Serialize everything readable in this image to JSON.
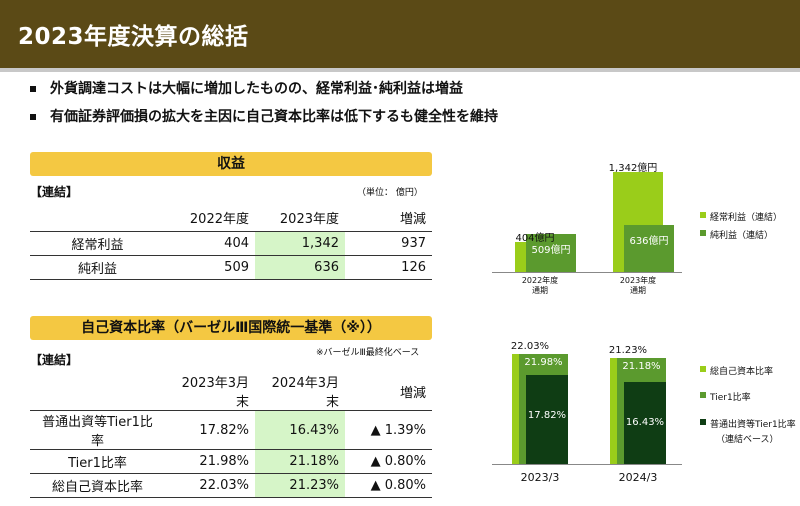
{
  "title": "2023年度決算の総括",
  "bullets": [
    "外貨調達コストは大幅に増加したものの、経常利益･純利益は増益",
    "有価証券評価損の拡大を主因に自己資本比率は低下するも健全性を維持"
  ],
  "income": {
    "banner": "収益",
    "scope": "【連結】",
    "unit": "（単位： 億円）",
    "headers": [
      "",
      "2022年度",
      "2023年度",
      "増減"
    ],
    "rows": [
      {
        "label": "経常利益",
        "v2022": "404",
        "v2023": "1,342",
        "diff": "937"
      },
      {
        "label": "純利益",
        "v2022": "509",
        "v2023": "636",
        "diff": "126"
      }
    ]
  },
  "capital": {
    "banner": "自己資本比率（バーゼルⅢ国際統一基準（※））",
    "note": "※バーゼルⅢ最終化ベース",
    "scope": "【連結】",
    "headers": [
      "",
      "2023年3月末",
      "2024年3月末",
      "増減"
    ],
    "rows": [
      {
        "label": "普通出資等Tier1比率",
        "v2023": "17.82%",
        "v2024": "16.43%",
        "diff": "▲ 1.39%"
      },
      {
        "label": "Tier1比率",
        "v2023": "21.98%",
        "v2024": "21.18%",
        "diff": "▲ 0.80%"
      },
      {
        "label": "総自己資本比率",
        "v2023": "22.03%",
        "v2024": "21.23%",
        "diff": "▲ 0.80%"
      }
    ]
  },
  "chart_data": [
    {
      "type": "bar",
      "categories": [
        "2022年度\n通期",
        "2023年度\n通期"
      ],
      "series": [
        {
          "name": "経常利益（連結）",
          "values": [
            404,
            1342
          ],
          "labels": [
            "404億円",
            "1,342億円"
          ],
          "color": "#9acd1a"
        },
        {
          "name": "純利益（連結）",
          "values": [
            509,
            636
          ],
          "labels": [
            "509億円",
            "636億円"
          ],
          "color": "#5b9a2e"
        }
      ],
      "ylim": [
        0,
        1342
      ]
    },
    {
      "type": "bar",
      "categories": [
        "2023/3",
        "2024/3"
      ],
      "series": [
        {
          "name": "総自己資本比率",
          "values": [
            22.03,
            21.23
          ],
          "labels": [
            "22.03%",
            "21.23%"
          ],
          "color": "#9acd1a"
        },
        {
          "name": "Tier1比率",
          "values": [
            21.98,
            21.18
          ],
          "labels": [
            "21.98%",
            "21.18%"
          ],
          "color": "#5b9a2e"
        },
        {
          "name": "普通出資等Tier1比率",
          "values": [
            17.82,
            16.43
          ],
          "labels": [
            "17.82%",
            "16.43%"
          ],
          "color": "#0f3d14"
        }
      ],
      "legend_note": "（連結ベース）",
      "ylim": [
        0,
        22.03
      ]
    }
  ]
}
